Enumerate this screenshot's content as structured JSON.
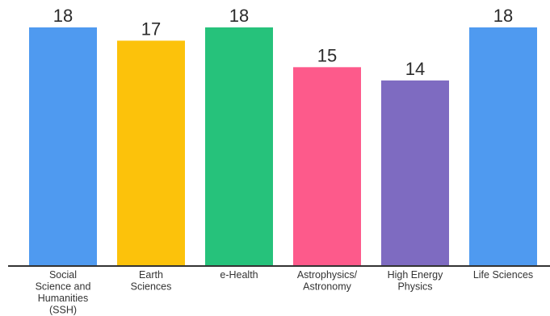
{
  "chart_data": {
    "type": "bar",
    "title": "",
    "xlabel": "",
    "ylabel": "",
    "ylim": [
      0,
      18
    ],
    "grid": false,
    "categories": [
      "Social Science and Humanities (SSH)",
      "Earth Sciences",
      "e-Health",
      "Astrophysics/ Astronomy",
      "High Energy Physics",
      "Life Sciences"
    ],
    "category_lines": [
      [
        "Social",
        "Science and",
        "Humanities",
        "(SSH)"
      ],
      [
        "Earth",
        "Sciences"
      ],
      [
        "e-Health"
      ],
      [
        "Astrophysics/",
        "Astronomy"
      ],
      [
        "High Energy",
        "Physics"
      ],
      [
        "Life Sciences"
      ]
    ],
    "values": [
      18,
      17,
      18,
      15,
      14,
      18
    ],
    "colors": [
      "#4f9af0",
      "#fcc20b",
      "#26c27b",
      "#fd5a8b",
      "#7e6bc1",
      "#4f9af0"
    ],
    "data_labels": true
  }
}
